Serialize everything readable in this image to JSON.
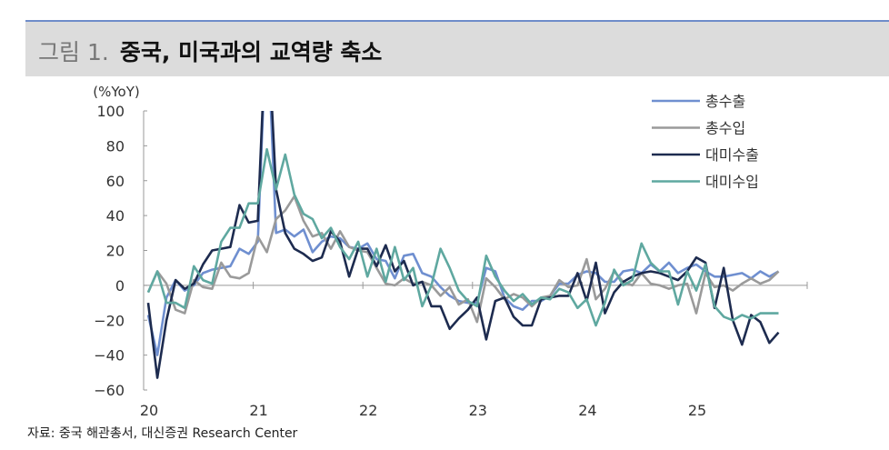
{
  "header": {
    "figure_number": "그림 1.",
    "title": "중국, 미국과의 교역량 축소"
  },
  "source": "자료: 중국 해관총서, 대신증권 Research Center",
  "chart_data": {
    "type": "line",
    "title": "중국, 미국과의 교역량 축소",
    "ylabel": "(%YoY)",
    "xlabel": "",
    "ylim": [
      -60,
      100
    ],
    "yticks": [
      100,
      80,
      60,
      40,
      20,
      0,
      -20,
      -40,
      -60
    ],
    "ytick_labels": [
      "100",
      "80",
      "60",
      "40",
      "20",
      "0",
      "−20",
      "−40",
      "−60"
    ],
    "xtick_labels": [
      "20",
      "21",
      "22",
      "23",
      "24",
      "25"
    ],
    "x_start": "2020-01",
    "frequency": "monthly",
    "legend_position": "top-right",
    "grid": false,
    "series": [
      {
        "name": "총수출",
        "color": "#6f8fd0",
        "values": [
          -17,
          -40,
          -7,
          3,
          -3,
          0,
          7,
          9,
          10,
          11,
          21,
          18,
          25,
          155,
          30,
          32,
          28,
          32,
          19,
          25,
          28,
          27,
          22,
          21,
          24,
          15,
          14,
          4,
          17,
          18,
          7,
          5,
          -1,
          -6,
          -9,
          -10,
          -10,
          10,
          8,
          -7,
          -12,
          -14,
          -9,
          -9,
          -6,
          1,
          1,
          6,
          8,
          7,
          2,
          2,
          8,
          9,
          7,
          12,
          8,
          13,
          7,
          10,
          12,
          8,
          5,
          5,
          6,
          7,
          4,
          8,
          5,
          8
        ]
      },
      {
        "name": "총수입",
        "color": "#9a9a9a",
        "values": [
          -4,
          8,
          1,
          -14,
          -16,
          3,
          -1,
          -2,
          13,
          5,
          4,
          7,
          28,
          19,
          38,
          43,
          51,
          37,
          28,
          30,
          21,
          31,
          22,
          20,
          19,
          10,
          1,
          0,
          4,
          1,
          2,
          0,
          -6,
          -1,
          -11,
          -8,
          -21,
          4,
          -1,
          -8,
          -5,
          -7,
          -12,
          -7,
          -6,
          3,
          -1,
          0,
          15,
          -8,
          -2,
          8,
          2,
          0,
          7,
          1,
          0,
          -2,
          0,
          1,
          -16,
          7,
          -1,
          0,
          -3,
          1,
          4,
          1,
          3,
          8
        ]
      },
      {
        "name": "대미수출",
        "color": "#1d2b4f",
        "values": [
          -10,
          -53,
          -20,
          3,
          -2,
          1,
          12,
          20,
          21,
          22,
          46,
          36,
          37,
          160,
          55,
          30,
          21,
          18,
          14,
          16,
          31,
          25,
          5,
          21,
          21,
          11,
          23,
          8,
          14,
          0,
          2,
          -12,
          -12,
          -25,
          -19,
          -14,
          -7,
          -31,
          -9,
          -7,
          -18,
          -23,
          -23,
          -8,
          -7,
          -6,
          -6,
          7,
          -9,
          13,
          -16,
          -4,
          2,
          5,
          7,
          8,
          7,
          5,
          3,
          8,
          16,
          13,
          -13,
          10,
          -20,
          -34,
          -17,
          -21,
          -33,
          -27
        ]
      },
      {
        "name": "대미수입",
        "color": "#5fa8a0",
        "values": [
          -4,
          8,
          -10,
          -10,
          -13,
          11,
          3,
          1,
          25,
          33,
          33,
          47,
          47,
          78,
          55,
          75,
          52,
          41,
          38,
          27,
          33,
          22,
          15,
          25,
          5,
          21,
          2,
          22,
          3,
          10,
          -12,
          0,
          21,
          10,
          -3,
          -9,
          -12,
          17,
          5,
          -3,
          -9,
          -5,
          -11,
          -7,
          -8,
          -2,
          -4,
          -13,
          -8,
          -23,
          -10,
          9,
          0,
          3,
          24,
          13,
          8,
          8,
          -11,
          8,
          -3,
          12,
          -12,
          -18,
          -20,
          -17,
          -19,
          -16,
          -16,
          -16
        ]
      }
    ]
  }
}
